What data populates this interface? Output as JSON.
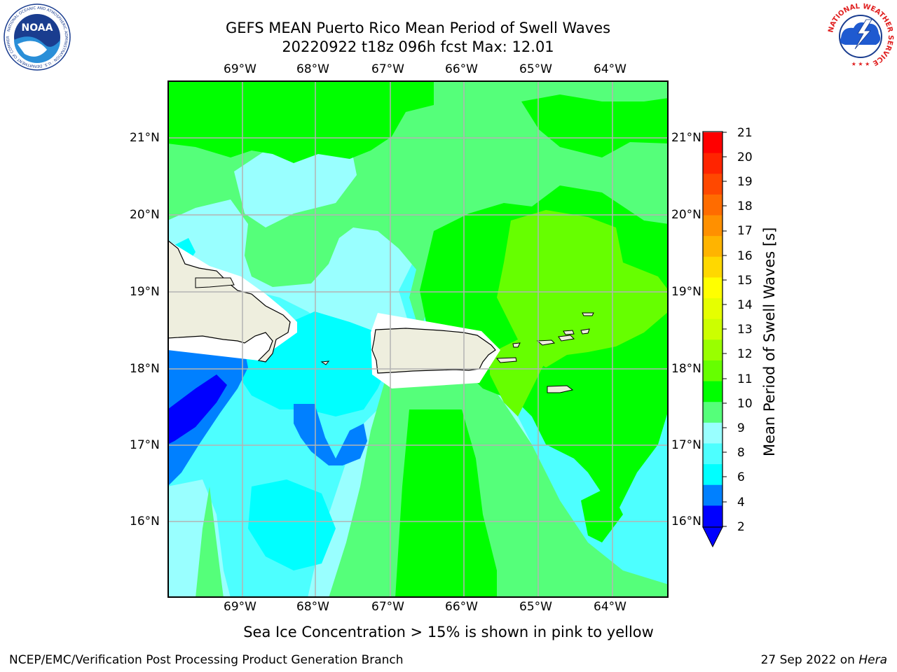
{
  "header": {
    "title_line1": "GEFS MEAN Puerto Rico Mean Period of Swell Waves",
    "title_line2": "20220922 t18z 096h fcst   Max: 12.01"
  },
  "logos": {
    "noaa_text": "NOAA",
    "noaa_ring": "NATIONAL OCEANIC AND ATMOSPHERIC ADMINISTRATION · U.S. DEPARTMENT OF COMMERCE",
    "nws_ring": "NATIONAL WEATHER SERVICE"
  },
  "map": {
    "lon_ticks": [
      "69°W",
      "68°W",
      "67°W",
      "66°W",
      "65°W",
      "64°W"
    ],
    "lat_ticks": [
      "21°N",
      "20°N",
      "19°N",
      "18°N",
      "17°N",
      "16°N"
    ],
    "ocean_color": "#4dffff",
    "land_color": "#eeeede"
  },
  "colorbar": {
    "title": "Mean Period of Swell Waves [s]",
    "labels": [
      "21",
      "20",
      "19",
      "18",
      "17",
      "16",
      "15",
      "14",
      "13",
      "12",
      "11",
      "10",
      "9",
      "8",
      "6",
      "4",
      "2"
    ],
    "colors": [
      "#ff0000",
      "#ff2400",
      "#ff4800",
      "#ff6c00",
      "#ff9000",
      "#ffb400",
      "#ffd800",
      "#ffff00",
      "#e6ff00",
      "#ccff00",
      "#99ff00",
      "#66ff00",
      "#00ff00",
      "#55ff7a",
      "#99ffff",
      "#4dffff",
      "#00ffff",
      "#0080ff",
      "#0000ff"
    ],
    "under_color": "#0000ff"
  },
  "footer": {
    "note": "Sea Ice Concentration > 15% is shown in pink to yellow",
    "left": "NCEP/EMC/Verification Post Processing Product Generation Branch",
    "right_prefix": "27 Sep 2022 on ",
    "right_host": "Hera"
  }
}
